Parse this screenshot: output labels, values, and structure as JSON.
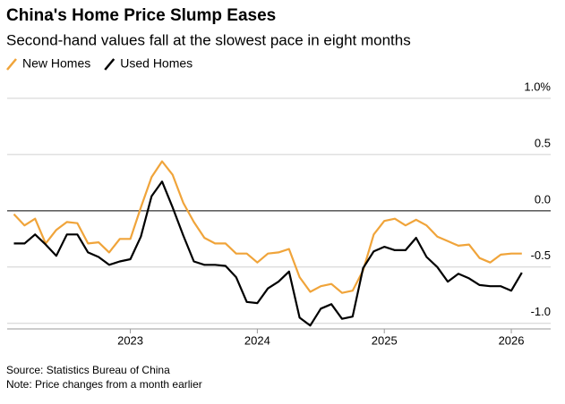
{
  "chart_data": {
    "type": "line",
    "title": "China's Home Price Slump Eases",
    "subtitle": "Second-hand values fall at the slowest pace in eight months",
    "source": "Source: Statistics Bureau of China",
    "note": "Note: Price changes from a month earlier",
    "x": [
      2022.083,
      2022.167,
      2022.25,
      2022.333,
      2022.417,
      2022.5,
      2022.583,
      2022.667,
      2022.75,
      2022.833,
      2022.917,
      2023.0,
      2023.083,
      2023.167,
      2023.25,
      2023.333,
      2023.417,
      2023.5,
      2023.583,
      2023.667,
      2023.75,
      2023.833,
      2023.917,
      2024.0,
      2024.083,
      2024.167,
      2024.25,
      2024.333,
      2024.417,
      2024.5,
      2024.583,
      2024.667,
      2024.75,
      2024.833,
      2024.917,
      2025.0,
      2025.083,
      2025.167,
      2025.25,
      2025.333,
      2025.417,
      2025.5,
      2025.583,
      2025.667,
      2025.75,
      2025.833,
      2025.917,
      2026.0,
      2026.083
    ],
    "series": [
      {
        "name": "New Homes",
        "color": "#f0a43a",
        "values": [
          -0.03,
          -0.13,
          -0.07,
          -0.29,
          -0.17,
          -0.1,
          -0.11,
          -0.29,
          -0.28,
          -0.37,
          -0.25,
          -0.25,
          0.03,
          0.3,
          0.44,
          0.32,
          0.07,
          -0.1,
          -0.24,
          -0.29,
          -0.29,
          -0.38,
          -0.38,
          -0.46,
          -0.38,
          -0.37,
          -0.34,
          -0.59,
          -0.72,
          -0.67,
          -0.65,
          -0.73,
          -0.71,
          -0.53,
          -0.21,
          -0.09,
          -0.07,
          -0.13,
          -0.08,
          -0.13,
          -0.23,
          -0.27,
          -0.31,
          -0.3,
          -0.42,
          -0.46,
          -0.39,
          -0.38,
          -0.38
        ]
      },
      {
        "name": "Used Homes",
        "color": "#000000",
        "values": [
          -0.29,
          -0.29,
          -0.21,
          -0.3,
          -0.4,
          -0.21,
          -0.21,
          -0.37,
          -0.41,
          -0.48,
          -0.45,
          -0.43,
          -0.23,
          0.13,
          0.26,
          0.03,
          -0.22,
          -0.45,
          -0.48,
          -0.48,
          -0.49,
          -0.59,
          -0.81,
          -0.82,
          -0.69,
          -0.63,
          -0.54,
          -0.95,
          -1.02,
          -0.87,
          -0.83,
          -0.96,
          -0.94,
          -0.51,
          -0.36,
          -0.32,
          -0.35,
          -0.35,
          -0.24,
          -0.41,
          -0.5,
          -0.63,
          -0.56,
          -0.6,
          -0.66,
          -0.67,
          -0.67,
          -0.71,
          -0.55
        ]
      }
    ],
    "xlim": [
      2022.03,
      2026.31
    ],
    "xticks": [
      2023,
      2024,
      2025,
      2026
    ],
    "ylim": [
      -1.05,
      1.0
    ],
    "yticks": [
      {
        "value": 1.0,
        "label": "1.0%"
      },
      {
        "value": 0.5,
        "label": "0.5"
      },
      {
        "value": 0,
        "label": "0.0"
      },
      {
        "value": -0.5,
        "label": "-0.5"
      },
      {
        "value": -1.0,
        "label": "-1.0"
      }
    ],
    "grid": true
  }
}
